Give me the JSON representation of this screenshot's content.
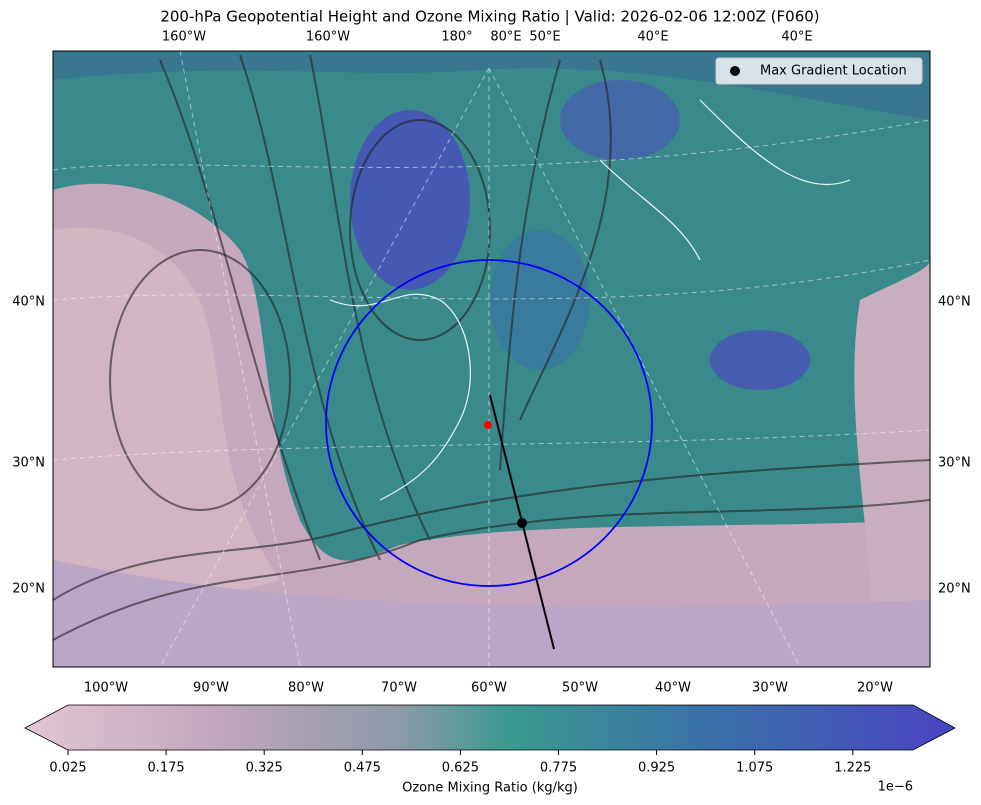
{
  "title": "200-hPa Geopotential Height and Ozone Mixing Ratio   |  Valid: 2026-02-06 12:00Z (F060)",
  "map": {
    "top_labels": [
      "160°W",
      "160°W",
      "180°",
      "80°E",
      "50°E",
      "40°E",
      "40°E"
    ],
    "left_labels": [
      "40°N",
      "30°N",
      "20°N"
    ],
    "right_labels": [
      "40°N",
      "30°N",
      "20°N"
    ],
    "bottom_labels": [
      "100°W",
      "90°W",
      "80°W",
      "70°W",
      "60°W",
      "50°W",
      "40°W",
      "30°W",
      "20°W"
    ],
    "legend": {
      "label": "Max Gradient Location"
    }
  },
  "colorbar": {
    "ticks": [
      "0.025",
      "0.175",
      "0.325",
      "0.475",
      "0.625",
      "0.775",
      "0.925",
      "1.075",
      "1.225"
    ],
    "label": "Ozone Mixing Ratio (kg/kg)",
    "offset": "1e−6"
  }
}
